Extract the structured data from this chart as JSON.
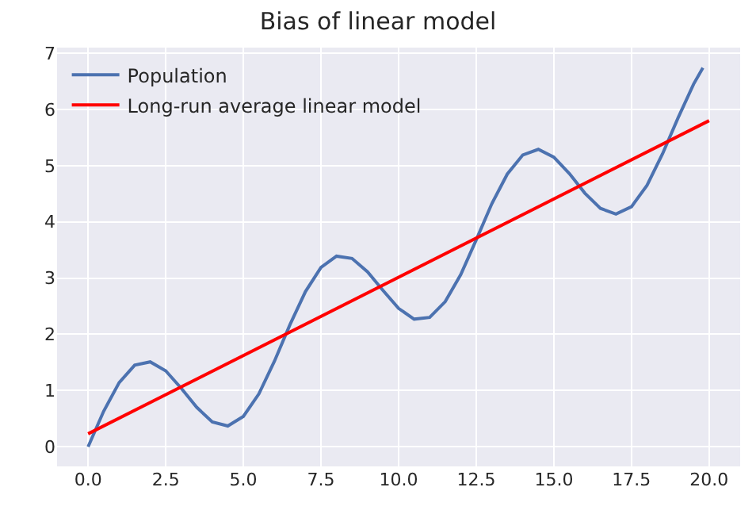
{
  "chart_data": {
    "type": "line",
    "title": "Bias of linear model",
    "series": [
      {
        "name": "Population",
        "color": "#4c72b0",
        "x": [
          0,
          0.5,
          1,
          1.5,
          2,
          2.5,
          3,
          3.5,
          4,
          4.5,
          5,
          5.5,
          6,
          6.5,
          7,
          7.5,
          8,
          8.5,
          9,
          9.5,
          10,
          10.5,
          11,
          11.5,
          12,
          12.5,
          13,
          13.5,
          14,
          14.5,
          15,
          15.5,
          16,
          16.5,
          17,
          17.5,
          18,
          18.5,
          19,
          19.5,
          19.8
        ],
        "values": [
          0,
          0.63,
          1.14,
          1.45,
          1.51,
          1.35,
          1.04,
          0.7,
          0.44,
          0.37,
          0.54,
          0.94,
          1.52,
          2.17,
          2.76,
          3.19,
          3.39,
          3.35,
          3.11,
          2.78,
          2.46,
          2.27,
          2.3,
          2.58,
          3.06,
          3.68,
          4.32,
          4.85,
          5.19,
          5.29,
          5.15,
          4.86,
          4.51,
          4.24,
          4.14,
          4.27,
          4.65,
          5.21,
          5.85,
          6.45,
          6.74
        ]
      },
      {
        "name": "Long-run average linear model",
        "color": "#ff0000",
        "x": [
          0,
          20
        ],
        "values": [
          0.23,
          5.8
        ]
      }
    ],
    "xlim": [
      -1,
      21
    ],
    "ylim": [
      -0.35,
      7.1
    ],
    "xticks": [
      {
        "value": 0,
        "label": "0.0"
      },
      {
        "value": 2.5,
        "label": "2.5"
      },
      {
        "value": 5,
        "label": "5.0"
      },
      {
        "value": 7.5,
        "label": "7.5"
      },
      {
        "value": 10,
        "label": "10.0"
      },
      {
        "value": 12.5,
        "label": "12.5"
      },
      {
        "value": 15,
        "label": "15.0"
      },
      {
        "value": 17.5,
        "label": "17.5"
      },
      {
        "value": 20,
        "label": "20.0"
      }
    ],
    "yticks": [
      0,
      1,
      2,
      3,
      4,
      5,
      6,
      7
    ],
    "grid": true,
    "legend": "top left",
    "marker": "none",
    "line_style": "solid"
  }
}
